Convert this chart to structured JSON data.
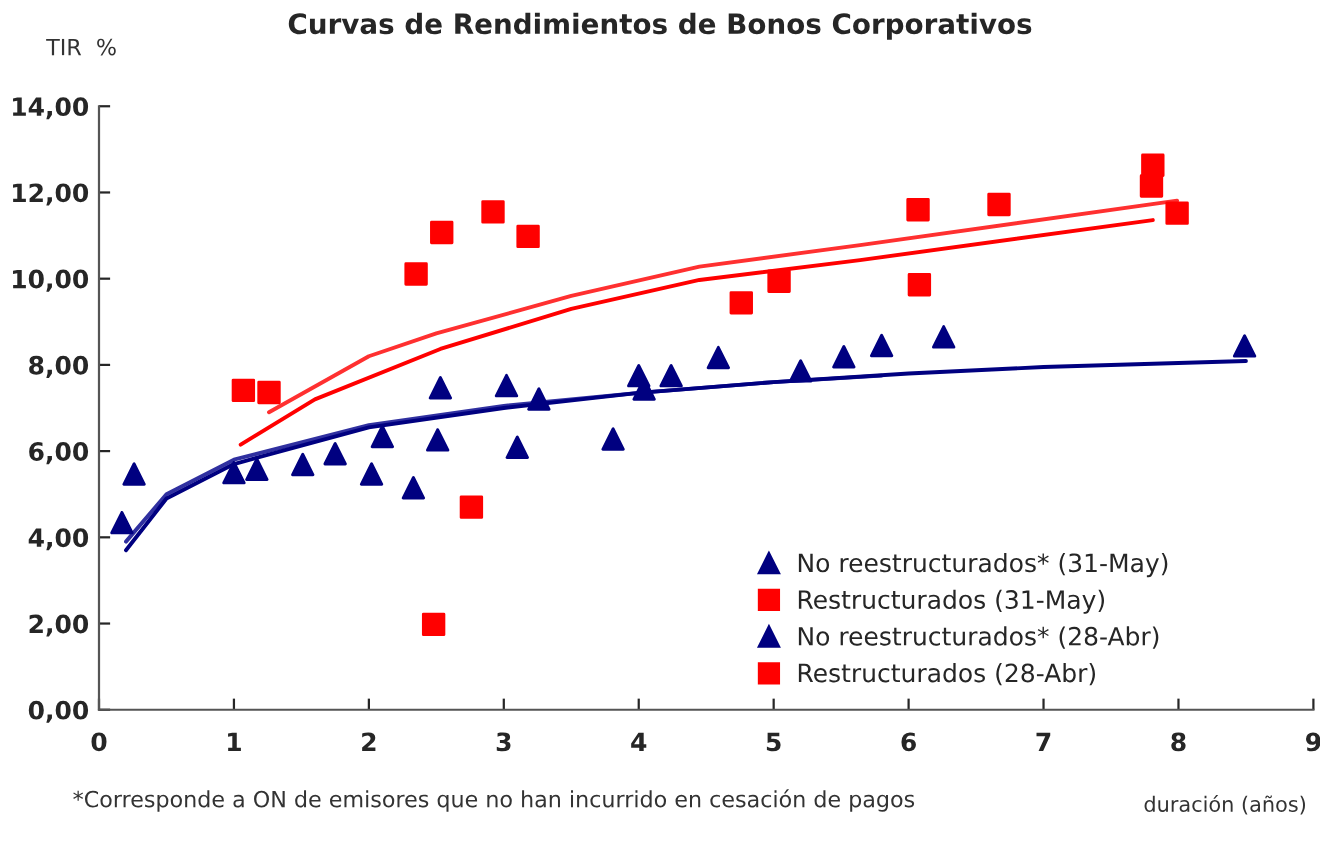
{
  "chart_data": {
    "type": "scatter",
    "title": "Curvas de Rendimientos de Bonos Corporativos",
    "xlabel": "duración (años)",
    "ylabel": "TIR  %",
    "annotations": [
      "*Corresponde a ON de emisores que no han incurrido en cesación de pagos"
    ],
    "xlim": [
      0,
      9
    ],
    "xticks": [
      0,
      1,
      2,
      3,
      4,
      5,
      6,
      7,
      8,
      9
    ],
    "ylim": [
      0,
      14
    ],
    "yticks": [
      {
        "value": 0,
        "label": "0,00"
      },
      {
        "value": 2,
        "label": "2,00"
      },
      {
        "value": 4,
        "label": "4,00"
      },
      {
        "value": 6,
        "label": "6,00"
      },
      {
        "value": 8,
        "label": "8,00"
      },
      {
        "value": 10,
        "label": "10,00"
      },
      {
        "value": 12,
        "label": "12,00"
      },
      {
        "value": 14,
        "label": "14,00"
      }
    ],
    "grid": false,
    "legend": "bottom right",
    "series": [
      {
        "name": "No reestructurados* (31-May)",
        "marker": "triangle",
        "color": "#000080",
        "x": [
          0.17,
          1.0,
          1.51,
          2.02,
          2.1,
          2.53,
          3.1,
          3.26,
          4.04,
          4.24,
          4.59,
          5.8
        ],
        "values": [
          4.34,
          5.5,
          5.69,
          5.47,
          6.34,
          7.47,
          6.09,
          7.21,
          7.44,
          7.75,
          8.17,
          8.45
        ]
      },
      {
        "name": "Restructurados (31-May)",
        "marker": "square",
        "color": "#ff0000",
        "x": [
          1.07,
          2.35,
          2.54,
          2.48,
          4.76,
          5.04,
          6.07,
          7.8
        ],
        "values": [
          7.41,
          10.11,
          11.07,
          1.98,
          9.44,
          9.94,
          11.6,
          12.15
        ]
      },
      {
        "name": "No reestructurados* (28-Abr)",
        "marker": "triangle",
        "color": "#000080",
        "x": [
          0.26,
          1.17,
          1.75,
          2.33,
          2.51,
          3.02,
          3.81,
          4.0,
          5.2,
          5.52,
          6.26,
          8.49
        ],
        "values": [
          5.47,
          5.58,
          5.94,
          5.15,
          6.26,
          7.52,
          6.28,
          7.75,
          7.86,
          8.19,
          8.65,
          8.44
        ]
      },
      {
        "name": "Restructurados (28-Abr)",
        "marker": "square",
        "color": "#ff0000",
        "x": [
          1.26,
          2.92,
          3.18,
          2.76,
          6.08,
          6.67,
          7.81,
          7.99
        ],
        "values": [
          7.36,
          11.55,
          10.98,
          4.7,
          9.86,
          11.72,
          12.63,
          11.52
        ]
      },
      {
        "type": "line",
        "marker": "none",
        "line_style": "solid",
        "color": "#3030a0",
        "x": [
          0.2,
          0.5,
          1,
          2,
          3,
          4,
          5,
          5.8
        ],
        "values": [
          3.9,
          5.0,
          5.8,
          6.6,
          7.05,
          7.35,
          7.6,
          7.75
        ]
      },
      {
        "type": "line",
        "marker": "none",
        "line_style": "solid",
        "color": "#000080",
        "x": [
          0.2,
          0.5,
          1,
          2,
          3,
          4,
          5,
          6,
          7,
          8.5
        ],
        "values": [
          3.7,
          4.9,
          5.7,
          6.55,
          7.0,
          7.35,
          7.6,
          7.8,
          7.95,
          8.09
        ]
      },
      {
        "type": "line",
        "marker": "none",
        "line_style": "solid",
        "color": "#ff3030",
        "x": [
          1.26,
          2.0,
          2.5,
          3.5,
          4.45,
          5.64,
          7.99
        ],
        "values": [
          6.9,
          8.2,
          8.73,
          9.6,
          10.28,
          10.78,
          11.81
        ]
      },
      {
        "type": "line",
        "marker": "none",
        "line_style": "solid",
        "color": "#ff0000",
        "x": [
          1.05,
          1.6,
          2.53,
          3.5,
          4.45,
          5.64,
          7.81
        ],
        "values": [
          6.15,
          7.2,
          8.37,
          9.3,
          9.97,
          10.43,
          11.36
        ]
      }
    ]
  }
}
